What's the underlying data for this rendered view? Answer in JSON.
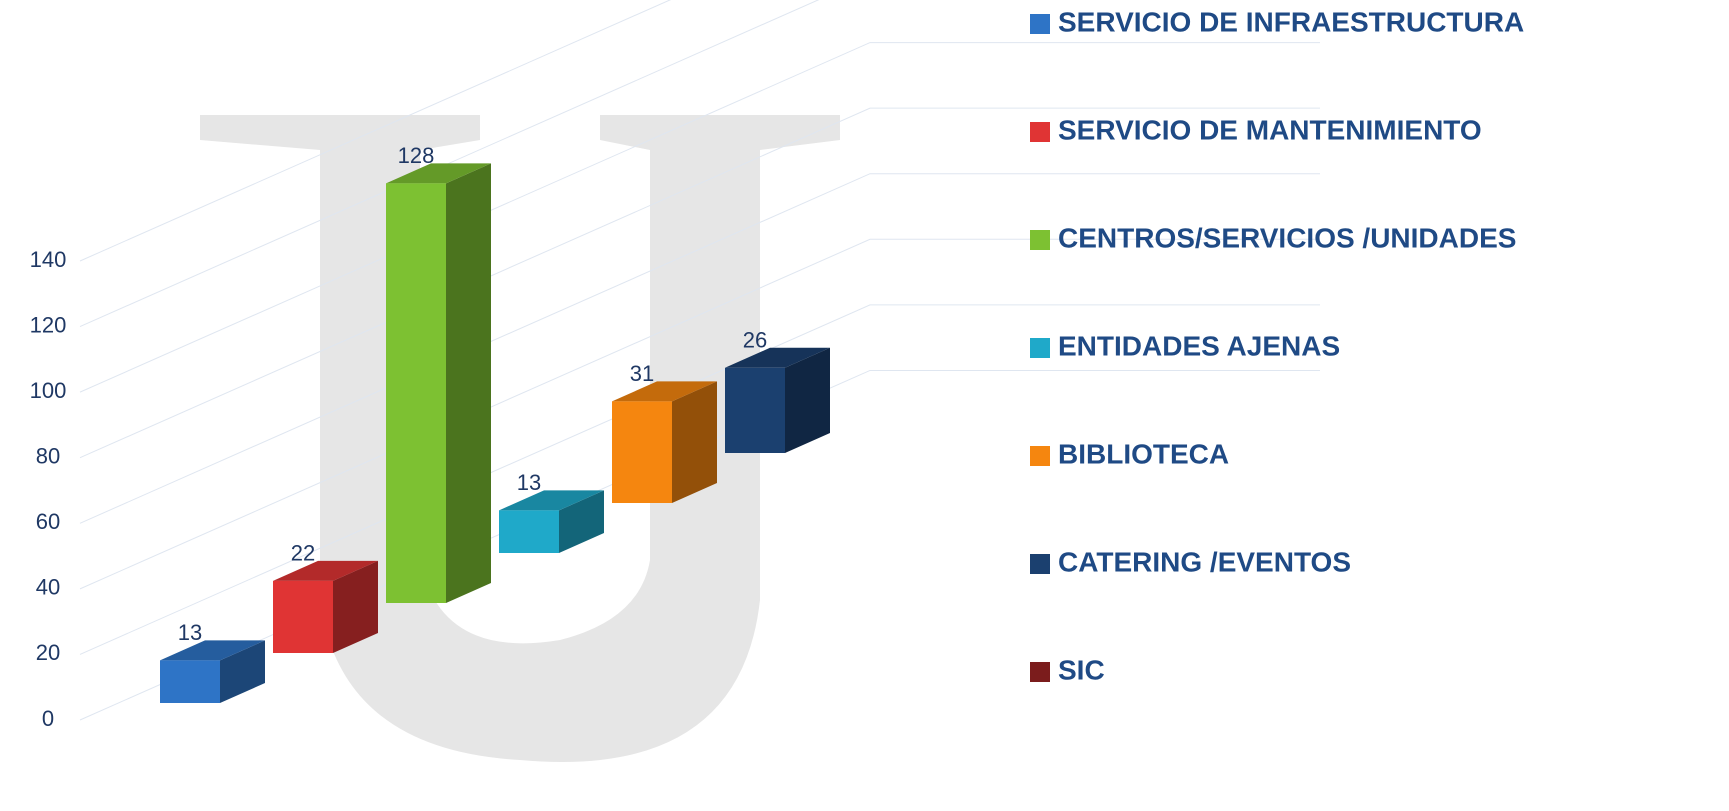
{
  "chart_data": {
    "type": "bar3d",
    "series": [
      {
        "name": "SERVICIO DE INFRAESTRUCTURA",
        "color": "#2e74c6",
        "values": [
          13
        ]
      },
      {
        "name": "SERVICIO DE MANTENIMIENTO",
        "color": "#e03434",
        "values": [
          22
        ]
      },
      {
        "name": "CENTROS/SERVICIOS /UNIDADES",
        "color": "#7dc132",
        "values": [
          128
        ]
      },
      {
        "name": "ENTIDADES AJENAS",
        "color": "#1fa9c9",
        "values": [
          13
        ]
      },
      {
        "name": "BIBLIOTECA",
        "color": "#f5860f",
        "values": [
          31
        ]
      },
      {
        "name": "CATERING /EVENTOS",
        "color": "#1b406f",
        "values": [
          26
        ]
      },
      {
        "name": "SIC",
        "color": "#7b1c1c",
        "values": [
          null
        ]
      }
    ],
    "ylim": [
      0,
      140
    ],
    "yticks": [
      0,
      20,
      40,
      60,
      80,
      100,
      120,
      140
    ],
    "grid": true
  }
}
